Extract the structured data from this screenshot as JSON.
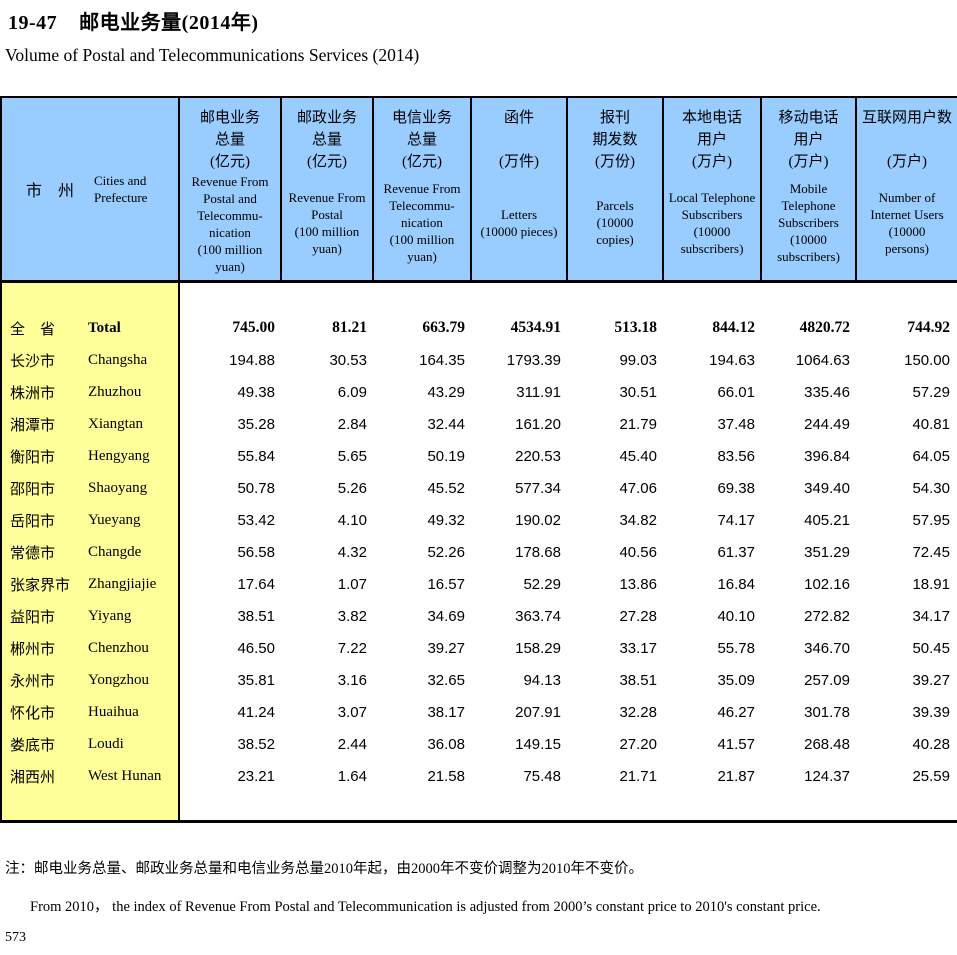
{
  "page": {
    "title": "19-47    邮电业务量(2014年)",
    "subtitle": "Volume of Postal and Telecommunications Services (2014)",
    "note_line1": "注：邮电业务总量、邮政业务总量和电信业务总量2010年起，由2000年不变价调整为2010年不变价。",
    "note_line2": "From 2010， the index of Revenue From Postal and Telecommunication is adjusted from 2000’s constant price to 2010's constant price.",
    "page_number": "573"
  },
  "colors": {
    "header_bg": "#99CCFF",
    "label_bg": "#FFFF99",
    "border": "#000000"
  },
  "table": {
    "corner": {
      "cn": "市　州",
      "en": "Cities and\nPrefecture"
    },
    "columns": [
      {
        "cn": "邮电业务\n总量\n(亿元)",
        "en": "Revenue From\nPostal and\nTelecommu-\nnication\n(100 million\nyuan)"
      },
      {
        "cn": "邮政业务\n总量\n(亿元)",
        "en": "Revenue From\nPostal\n(100 million\nyuan)"
      },
      {
        "cn": "电信业务\n总量\n(亿元)",
        "en": "Revenue From\nTelecommu-\nnication\n(100 million\nyuan)"
      },
      {
        "cn": "函件\n\n(万件)",
        "en": "Letters\n(10000 pieces)"
      },
      {
        "cn": "报刊\n期发数\n(万份)",
        "en": "Parcels\n(10000\ncopies)"
      },
      {
        "cn": "本地电话\n用户\n(万户)",
        "en": "Local Telephone\nSubscribers\n(10000\nsubscribers)"
      },
      {
        "cn": "移动电话\n用户\n(万户)",
        "en": "Mobile\nTelephone\nSubscribers\n(10000\nsubscribers)"
      },
      {
        "cn": "互联网用户数\n\n(万户)",
        "en": "Number of\nInternet Users\n(10000\npersons)"
      }
    ],
    "rows": [
      {
        "cn": "全　省",
        "en": "Total",
        "bold": true,
        "values": [
          "745.00",
          "81.21",
          "663.79",
          "4534.91",
          "513.18",
          "844.12",
          "4820.72",
          "744.92"
        ]
      },
      {
        "cn": "长沙市",
        "en": "Changsha",
        "bold": false,
        "values": [
          "194.88",
          "30.53",
          "164.35",
          "1793.39",
          "99.03",
          "194.63",
          "1064.63",
          "150.00"
        ]
      },
      {
        "cn": "株洲市",
        "en": "Zhuzhou",
        "bold": false,
        "values": [
          "49.38",
          "6.09",
          "43.29",
          "311.91",
          "30.51",
          "66.01",
          "335.46",
          "57.29"
        ]
      },
      {
        "cn": "湘潭市",
        "en": "Xiangtan",
        "bold": false,
        "values": [
          "35.28",
          "2.84",
          "32.44",
          "161.20",
          "21.79",
          "37.48",
          "244.49",
          "40.81"
        ]
      },
      {
        "cn": "衡阳市",
        "en": "Hengyang",
        "bold": false,
        "values": [
          "55.84",
          "5.65",
          "50.19",
          "220.53",
          "45.40",
          "83.56",
          "396.84",
          "64.05"
        ]
      },
      {
        "cn": "邵阳市",
        "en": "Shaoyang",
        "bold": false,
        "values": [
          "50.78",
          "5.26",
          "45.52",
          "577.34",
          "47.06",
          "69.38",
          "349.40",
          "54.30"
        ]
      },
      {
        "cn": "岳阳市",
        "en": "Yueyang",
        "bold": false,
        "values": [
          "53.42",
          "4.10",
          "49.32",
          "190.02",
          "34.82",
          "74.17",
          "405.21",
          "57.95"
        ]
      },
      {
        "cn": "常德市",
        "en": "Changde",
        "bold": false,
        "values": [
          "56.58",
          "4.32",
          "52.26",
          "178.68",
          "40.56",
          "61.37",
          "351.29",
          "72.45"
        ]
      },
      {
        "cn": "张家界市",
        "en": "Zhangjiajie",
        "bold": false,
        "values": [
          "17.64",
          "1.07",
          "16.57",
          "52.29",
          "13.86",
          "16.84",
          "102.16",
          "18.91"
        ]
      },
      {
        "cn": "益阳市",
        "en": "Yiyang",
        "bold": false,
        "values": [
          "38.51",
          "3.82",
          "34.69",
          "363.74",
          "27.28",
          "40.10",
          "272.82",
          "34.17"
        ]
      },
      {
        "cn": "郴州市",
        "en": "Chenzhou",
        "bold": false,
        "values": [
          "46.50",
          "7.22",
          "39.27",
          "158.29",
          "33.17",
          "55.78",
          "346.70",
          "50.45"
        ]
      },
      {
        "cn": "永州市",
        "en": "Yongzhou",
        "bold": false,
        "values": [
          "35.81",
          "3.16",
          "32.65",
          "94.13",
          "38.51",
          "35.09",
          "257.09",
          "39.27"
        ]
      },
      {
        "cn": "怀化市",
        "en": "Huaihua",
        "bold": false,
        "values": [
          "41.24",
          "3.07",
          "38.17",
          "207.91",
          "32.28",
          "46.27",
          "301.78",
          "39.39"
        ]
      },
      {
        "cn": "娄底市",
        "en": "Loudi",
        "bold": false,
        "values": [
          "38.52",
          "2.44",
          "36.08",
          "149.15",
          "27.20",
          "41.57",
          "268.48",
          "40.28"
        ]
      },
      {
        "cn": "湘西州",
        "en": "West Hunan",
        "bold": false,
        "values": [
          "23.21",
          "1.64",
          "21.58",
          "75.48",
          "21.71",
          "21.87",
          "124.37",
          "25.59"
        ]
      }
    ]
  }
}
